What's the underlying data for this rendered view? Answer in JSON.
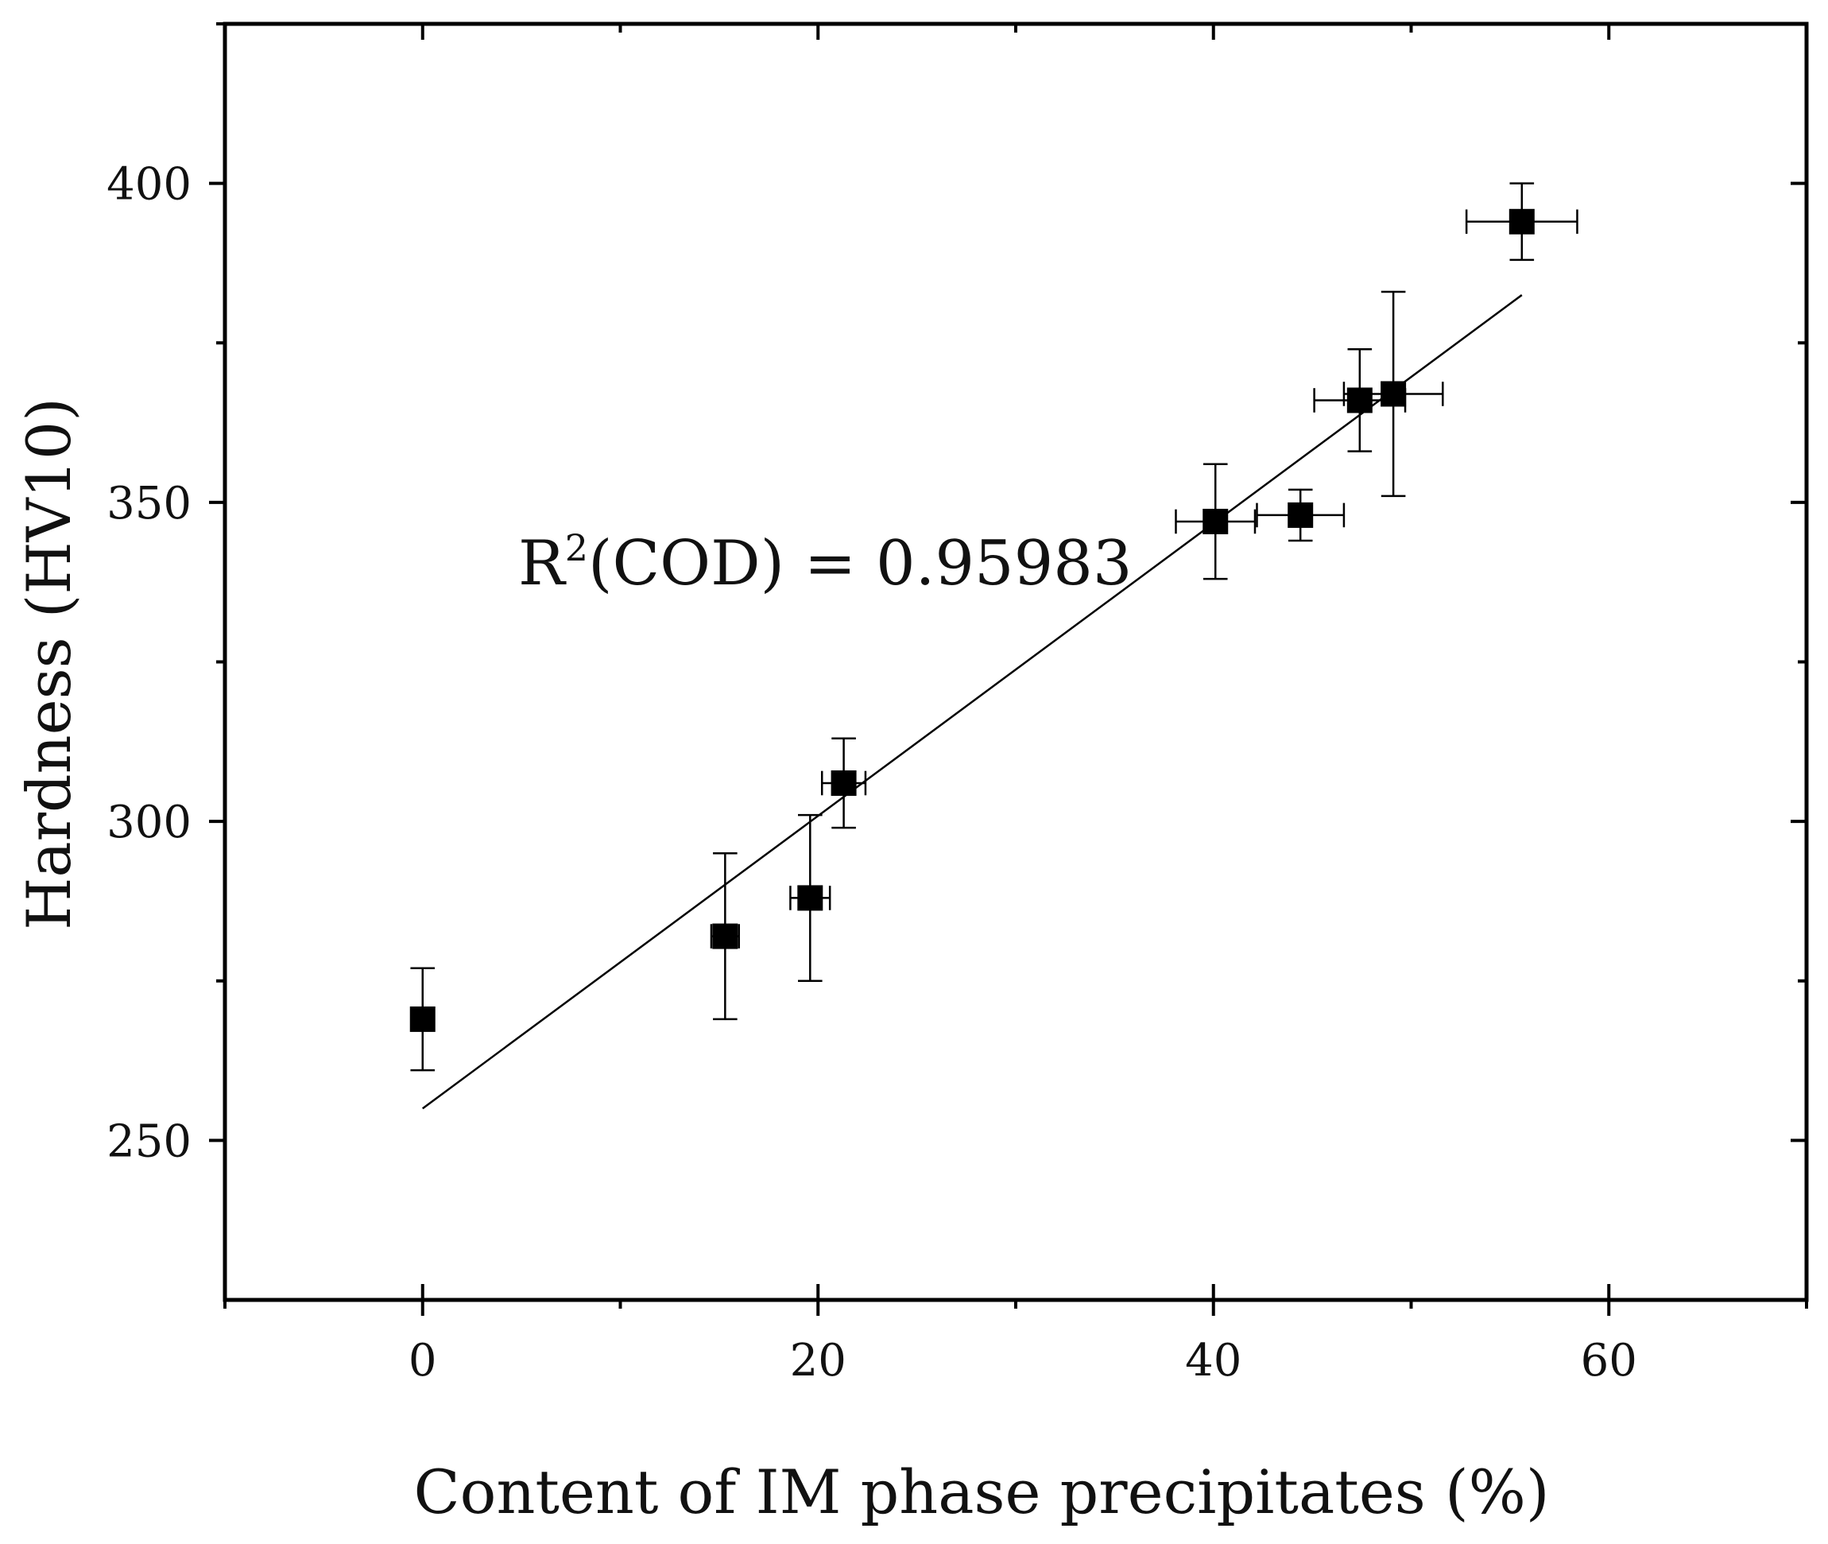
{
  "chart_data": {
    "type": "scatter",
    "title": "",
    "xlabel": "Content of IM phase precipitates (%)",
    "ylabel": "Hardness (HV10)",
    "xlim": [
      -10,
      70
    ],
    "ylim": [
      225,
      425
    ],
    "xticks": [
      0,
      20,
      40,
      60
    ],
    "yticks": [
      250,
      300,
      350,
      400
    ],
    "x_minor_ticks": [
      -10,
      10,
      30,
      50,
      70
    ],
    "y_minor_ticks": [
      275,
      325,
      375,
      425
    ],
    "grid": false,
    "series": [
      {
        "name": "Hardness",
        "marker": "square",
        "color": "#000000",
        "points": [
          {
            "x": 0.0,
            "y": 269,
            "xerr": 0.0,
            "yerr": 8
          },
          {
            "x": 15.3,
            "y": 282,
            "xerr": 0.7,
            "yerr": 13
          },
          {
            "x": 19.6,
            "y": 288,
            "xerr": 1.0,
            "yerr": 13
          },
          {
            "x": 21.3,
            "y": 306,
            "xerr": 1.1,
            "yerr": 7
          },
          {
            "x": 40.1,
            "y": 347,
            "xerr": 2.0,
            "yerr": 9
          },
          {
            "x": 44.4,
            "y": 348,
            "xerr": 2.2,
            "yerr": 4
          },
          {
            "x": 47.4,
            "y": 366,
            "xerr": 2.3,
            "yerr": 8
          },
          {
            "x": 49.1,
            "y": 367,
            "xerr": 2.5,
            "yerr": 16
          },
          {
            "x": 55.6,
            "y": 394,
            "xerr": 2.8,
            "yerr": 6
          }
        ]
      }
    ],
    "fit": {
      "type": "linear",
      "x_range": [
        0,
        55.6
      ],
      "y_range": [
        255,
        382.5
      ]
    },
    "annotation": {
      "base": "R",
      "superscript": "2",
      "rest": "(COD) = 0.95983"
    }
  }
}
